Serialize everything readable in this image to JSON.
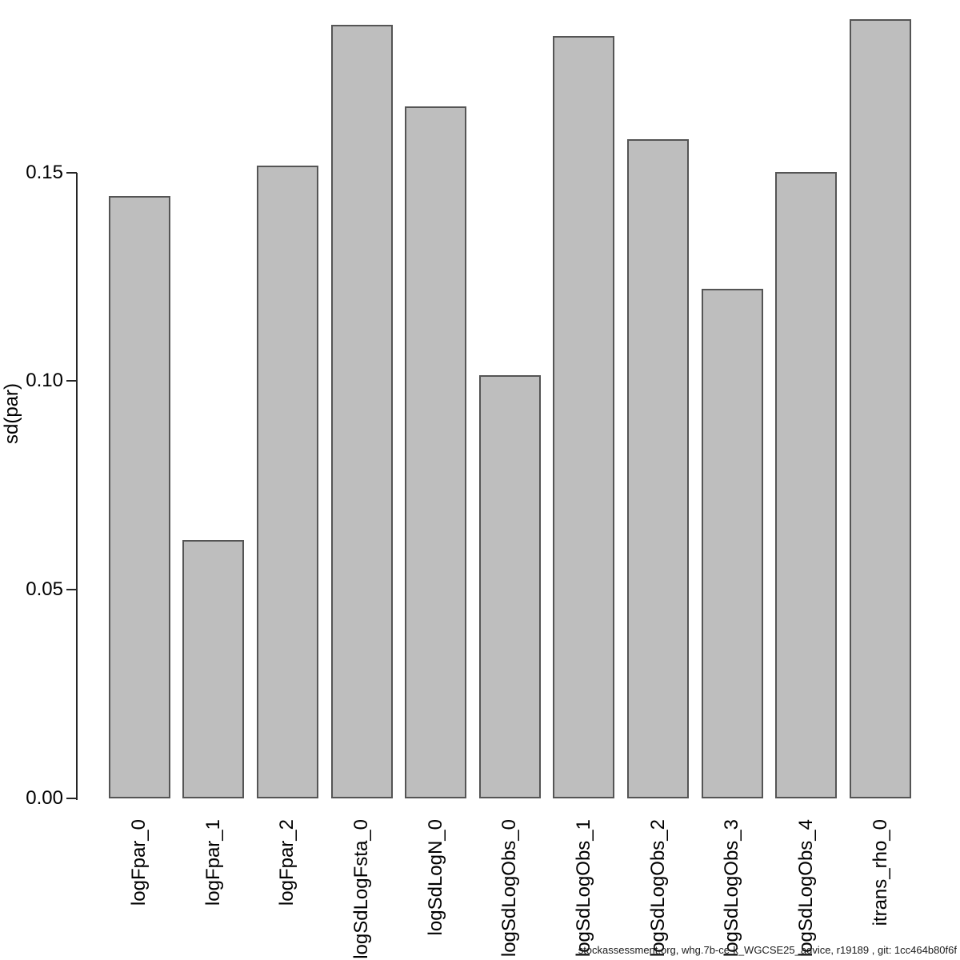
{
  "chart_data": {
    "type": "bar",
    "categories": [
      "logFpar_0",
      "logFpar_1",
      "logFpar_2",
      "logSdLogFsta_0",
      "logSdLogN_0",
      "logSdLogObs_0",
      "logSdLogObs_1",
      "logSdLogObs_2",
      "logSdLogObs_3",
      "logSdLogObs_4",
      "itrans_rho_0"
    ],
    "values": [
      0.1444,
      0.062,
      0.1517,
      0.1855,
      0.1658,
      0.1015,
      0.1828,
      0.158,
      0.1222,
      0.1502,
      0.1868
    ],
    "title": "",
    "xlabel": "",
    "ylabel": "sd(par)",
    "ytick_labels": [
      "0.00",
      "0.05",
      "0.10",
      "0.15"
    ],
    "ytick_values": [
      0,
      0.05,
      0.1,
      0.15
    ],
    "ylim": [
      0,
      0.19
    ],
    "grid": false,
    "legend_position": "none",
    "bar_fill": "#bebebe",
    "bar_border": "#555555",
    "axis_color": "#262626"
  },
  "footer": {
    "text": "stockassessment.org, whg.7b-ce-k_WGCSE25_advice, r19189 , git: 1cc464b80f6f"
  }
}
